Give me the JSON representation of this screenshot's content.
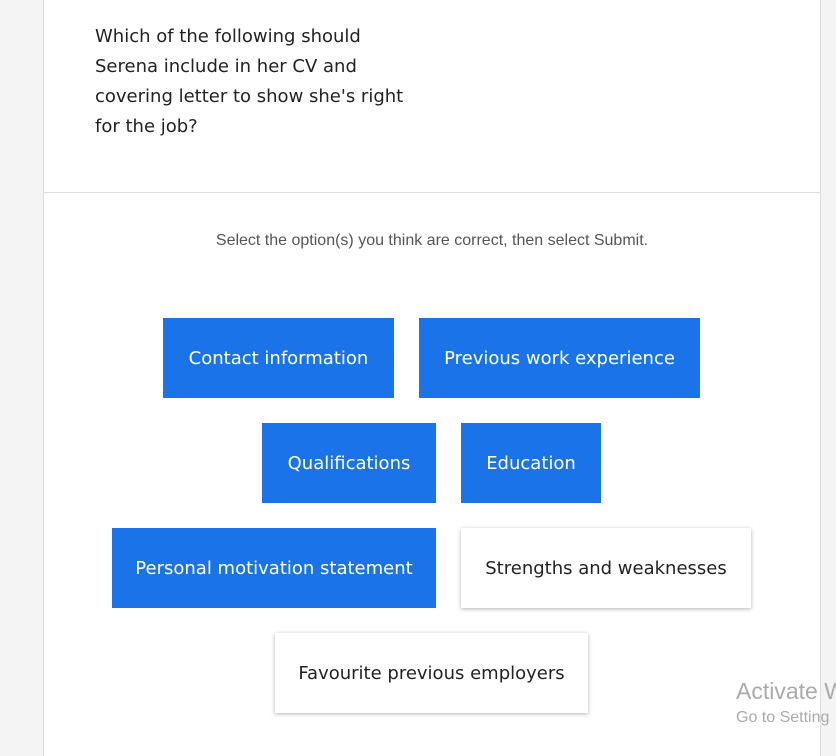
{
  "question": "Which of the following should Serena include in her CV and covering letter to show she's right for the job?",
  "instruction": "Select the option(s) you think are correct, then select Submit.",
  "options": [
    {
      "label": "Contact information",
      "selected": true
    },
    {
      "label": "Previous work experience",
      "selected": true
    },
    {
      "label": "Qualifications",
      "selected": true
    },
    {
      "label": "Education",
      "selected": true
    },
    {
      "label": "Personal motivation statement",
      "selected": true
    },
    {
      "label": "Strengths and weaknesses",
      "selected": false
    },
    {
      "label": "Favourite previous employers",
      "selected": false
    }
  ],
  "watermark": {
    "title": "Activate W",
    "subtitle": "Go to Setting"
  }
}
